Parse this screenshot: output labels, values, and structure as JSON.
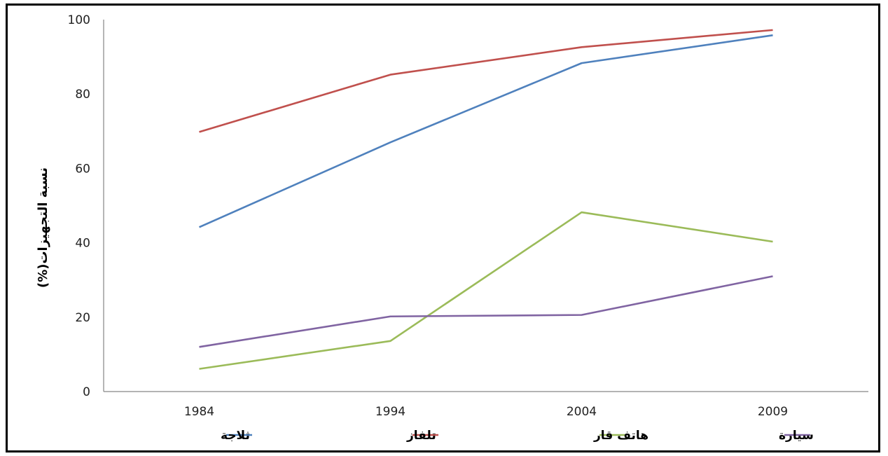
{
  "chart_data": {
    "type": "line",
    "title": "",
    "xlabel": "",
    "ylabel": "نسبة التجهيزات(%)",
    "categories": [
      "1984",
      "1994",
      "2004",
      "2009"
    ],
    "ylim": [
      0,
      100
    ],
    "yticks": [
      "0",
      "20",
      "40",
      "60",
      "80",
      "100"
    ],
    "grid": false,
    "legend_position": "bottom",
    "series": [
      {
        "name": "تلفاز",
        "color": "#c0504d",
        "values": [
          69.8,
          85.2,
          92.6,
          97.2
        ]
      },
      {
        "name": "ثلاجة",
        "color": "#4f81bd",
        "values": [
          44.2,
          67.0,
          88.3,
          95.8
        ]
      },
      {
        "name": "هاتف قار",
        "color": "#9bbb59",
        "values": [
          6.1,
          13.6,
          48.2,
          40.3
        ]
      },
      {
        "name": "سيارة",
        "color": "#8064a2",
        "values": [
          12.0,
          20.2,
          20.6,
          31.0
        ]
      }
    ],
    "legend_order": [
      1,
      0,
      2,
      3
    ]
  }
}
